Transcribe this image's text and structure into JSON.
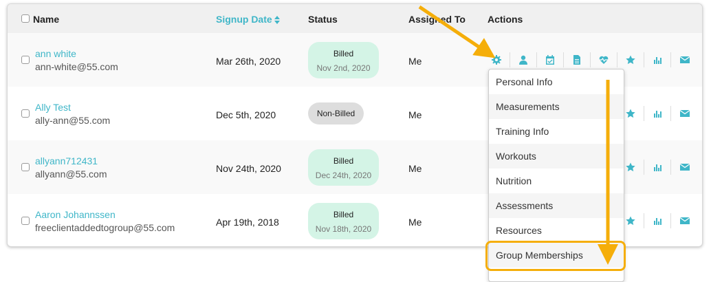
{
  "header": {
    "name": "Name",
    "signup": "Signup Date",
    "sort_icon": "sort-icon",
    "status": "Status",
    "assigned": "Assigned To",
    "actions": "Actions"
  },
  "rows": [
    {
      "name": "ann white",
      "email": "ann-white@55.com",
      "date": "Mar 26th, 2020",
      "status": "Billed",
      "status_date": "Nov 2nd, 2020",
      "assigned": "Me"
    },
    {
      "name": "Ally Test",
      "email": "ally-ann@55.com",
      "date": "Dec 5th, 2020",
      "status": "Non-Billed",
      "status_date": "",
      "assigned": "Me"
    },
    {
      "name": "allyann712431",
      "email": "allyann@55.com",
      "date": "Nov 24th, 2020",
      "status": "Billed",
      "status_date": "Dec 24th, 2020",
      "assigned": "Me"
    },
    {
      "name": "Aaron Johannssen",
      "email": "freeclientaddedtogroup@55.com",
      "date": "Apr 19th, 2018",
      "status": "Billed",
      "status_date": "Nov 18th, 2020",
      "assigned": "Me"
    }
  ],
  "action_icons": [
    "gear-icon",
    "user-icon",
    "calendar-icon",
    "document-icon",
    "heartbeat-icon",
    "star-icon",
    "bar-chart-icon",
    "envelope-icon"
  ],
  "menu": [
    "Personal Info",
    "Measurements",
    "Training Info",
    "Workouts",
    "Nutrition",
    "Assessments",
    "Resources",
    "Group Memberships"
  ],
  "colors": {
    "accent": "#3fb6c8",
    "billed": "#d4f4e6",
    "annotation": "#f5ae0a"
  }
}
